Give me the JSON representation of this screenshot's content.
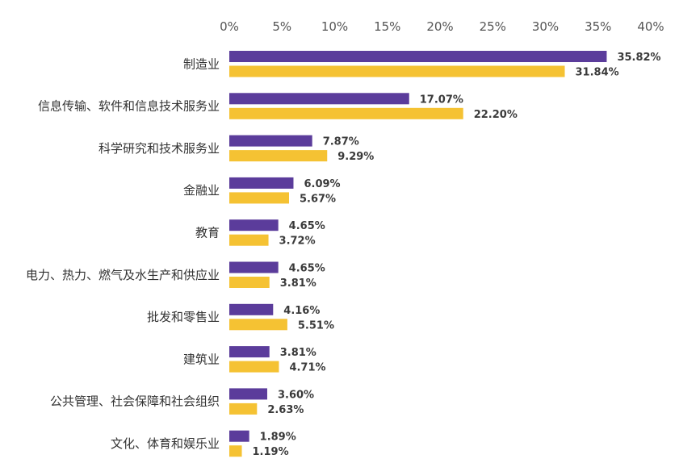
{
  "colors": {
    "series_a": "#5b3c9b",
    "series_b": "#f5c233"
  },
  "chart_data": {
    "type": "bar",
    "orientation": "horizontal",
    "xlim": [
      0,
      40
    ],
    "ticks": [
      "0%",
      "5%",
      "10%",
      "15%",
      "20%",
      "25%",
      "30%",
      "35%",
      "40%"
    ],
    "tick_values": [
      0,
      5,
      10,
      15,
      20,
      25,
      30,
      35,
      40
    ],
    "axis_position": "top",
    "grid": false,
    "legend": "none",
    "categories": [
      "制造业",
      "信息传输、软件和信息技术服务业",
      "科学研究和技术服务业",
      "金融业",
      "教育",
      "电力、热力、燃气及水生产和供应业",
      "批发和零售业",
      "建筑业",
      "公共管理、社会保障和社会组织",
      "文化、体育和娱乐业"
    ],
    "series": [
      {
        "values": [
          35.82,
          17.07,
          7.87,
          6.09,
          4.65,
          4.65,
          4.16,
          3.81,
          3.6,
          1.89
        ],
        "labels": [
          "35.82%",
          "17.07%",
          "7.87%",
          "6.09%",
          "4.65%",
          "4.65%",
          "4.16%",
          "3.81%",
          "3.60%",
          "1.89%"
        ]
      },
      {
        "values": [
          31.84,
          22.2,
          9.29,
          5.67,
          3.72,
          3.81,
          5.51,
          4.71,
          2.63,
          1.19
        ],
        "labels": [
          "31.84%",
          "22.20%",
          "9.29%",
          "5.67%",
          "3.72%",
          "3.81%",
          "5.51%",
          "4.71%",
          "2.63%",
          "1.19%"
        ]
      }
    ]
  }
}
